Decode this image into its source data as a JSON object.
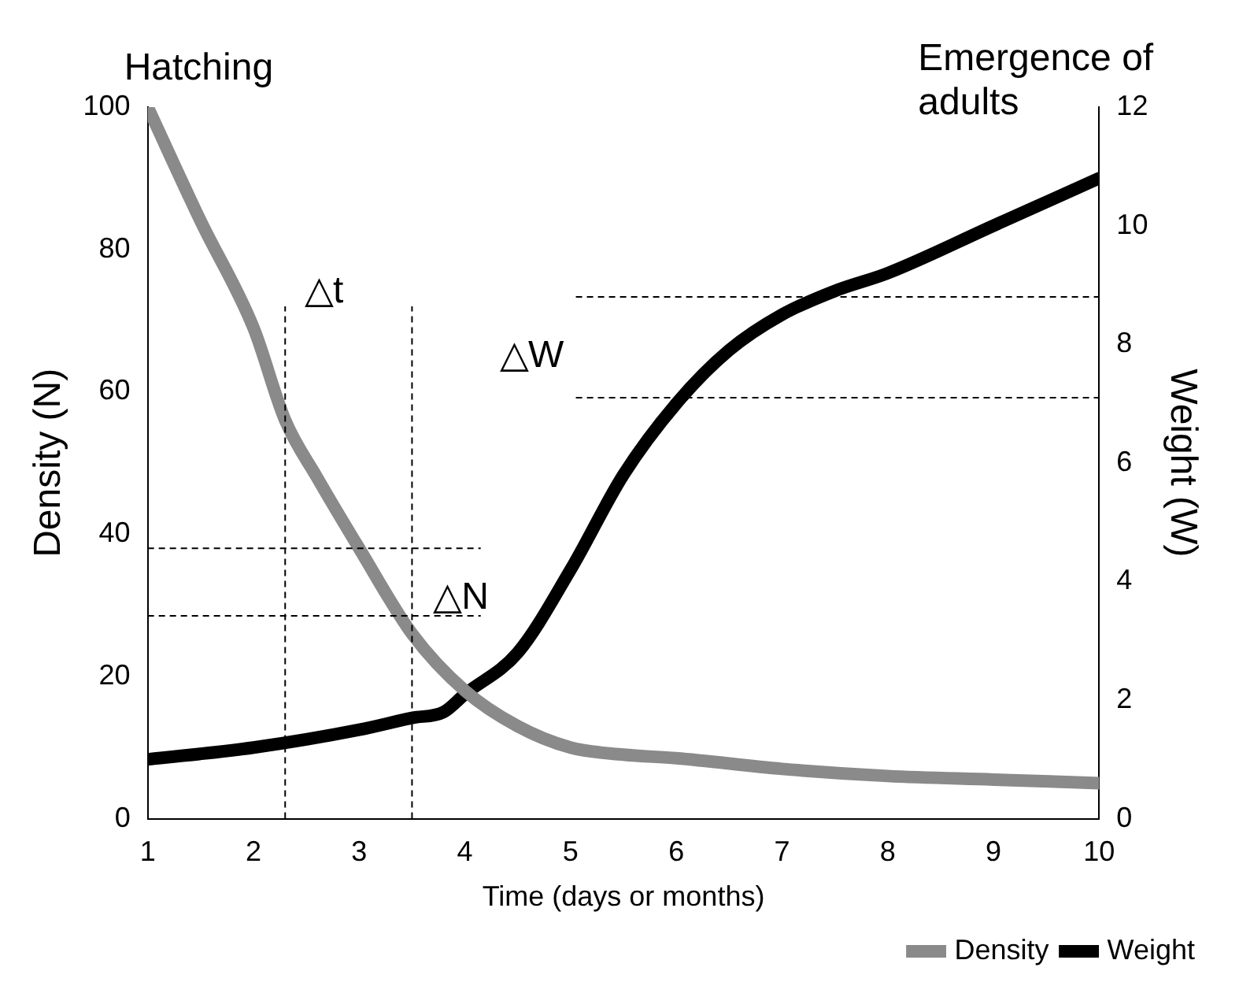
{
  "chart_data": {
    "type": "line",
    "xlabel": "Time (days or months)",
    "ylabel": "Density (N)",
    "y2label": "Weight (W)",
    "x": [
      1,
      1.5,
      2,
      2.3,
      2.6,
      3,
      3.5,
      4,
      4.5,
      5,
      5.5,
      6,
      7,
      8,
      9,
      10
    ],
    "series": [
      {
        "name": "Density",
        "color": "#8a8a8a",
        "values": [
          100,
          84,
          69,
          56,
          48,
          38,
          26,
          18,
          13,
          10,
          9,
          8.5,
          7,
          6,
          5.5,
          5
        ]
      },
      {
        "name": "Weight",
        "color": "#000000",
        "axis": "y2",
        "x": [
          1,
          2,
          3,
          3.5,
          3.8,
          4,
          4.5,
          5,
          5.5,
          6,
          6.5,
          7,
          7.5,
          8,
          9,
          10
        ],
        "values": [
          1.0,
          1.2,
          1.5,
          1.7,
          1.8,
          2.1,
          2.8,
          4.2,
          5.8,
          7.0,
          7.9,
          8.5,
          8.9,
          9.2,
          10.0,
          10.8
        ]
      }
    ],
    "xlim": [
      1,
      10
    ],
    "xticks": [
      1,
      2,
      3,
      4,
      5,
      6,
      7,
      8,
      9,
      10
    ],
    "ylim": [
      0,
      100
    ],
    "yticks": [
      0,
      20,
      40,
      60,
      80,
      100
    ],
    "y2lim": [
      0,
      12
    ],
    "y2ticks": [
      0,
      2,
      4,
      6,
      8,
      10,
      12
    ],
    "ref_lines": [
      {
        "axis": "x",
        "value": 2.3,
        "line_style": "dashed"
      },
      {
        "axis": "x",
        "value": 3.5,
        "line_style": "dashed"
      },
      {
        "axis": "y",
        "value": 38,
        "line_style": "dashed"
      },
      {
        "axis": "y",
        "value": 28.5,
        "line_style": "dashed"
      },
      {
        "axis": "y2",
        "value": 8.8,
        "line_style": "dashed"
      },
      {
        "axis": "y2",
        "value": 7.1,
        "line_style": "dashed"
      }
    ],
    "annotations": [
      "Hatching",
      "Emergence of adults",
      "△t",
      "△N",
      "△W"
    ],
    "grid": false,
    "legend": "bottom right",
    "marker": "none",
    "line_style": "solid"
  }
}
